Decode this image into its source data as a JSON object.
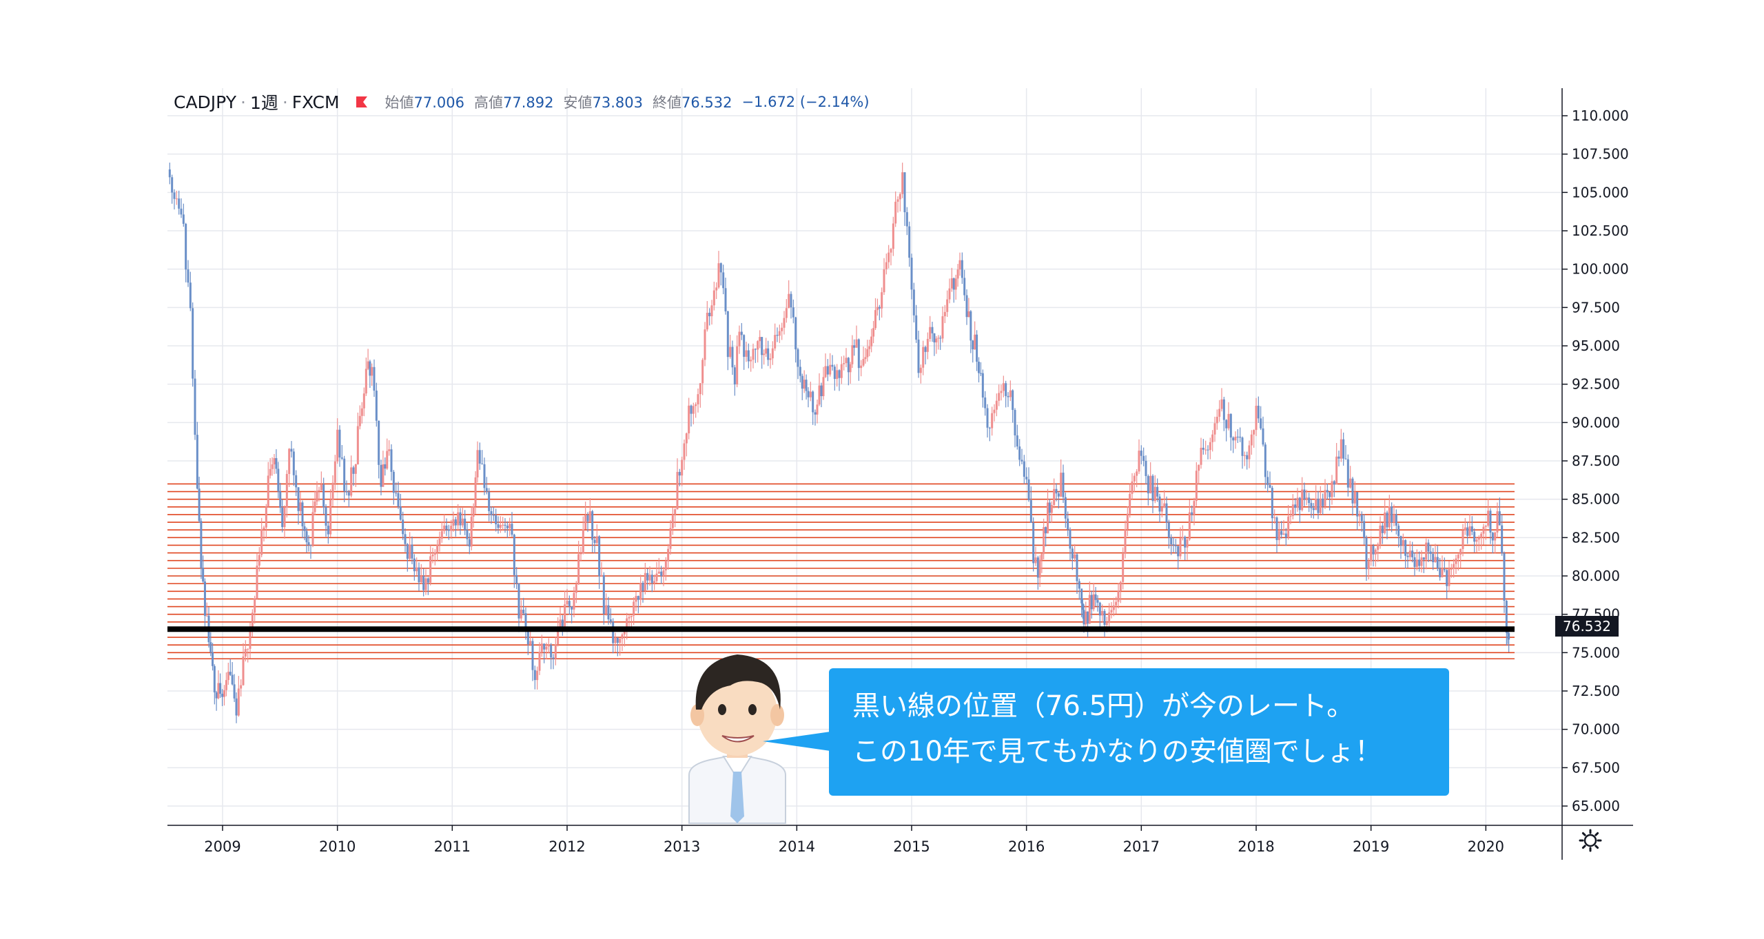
{
  "header": {
    "symbol": "CADJPY",
    "interval": "1週",
    "exchange": "FXCM",
    "open_label": "始値",
    "open_value": "77.006",
    "high_label": "高値",
    "high_value": "77.892",
    "low_label": "安値",
    "low_value": "73.803",
    "close_label": "終値",
    "close_value": "76.532",
    "change": "−1.672 (−2.14%)"
  },
  "price_tag": "76.532",
  "callout": {
    "line1": "黒い線の位置（76.5円）が今のレート。",
    "line2": "この10年で見てもかなりの安値圏でしょ！"
  },
  "colors": {
    "up": "#ef8e8e",
    "down": "#6a8fc8",
    "hline": "#e0441f",
    "current_line": "#000000",
    "callout_bg": "#1ea2f2"
  },
  "icons": {
    "flag": "red-flag-icon",
    "settings": "gear-icon",
    "avatar": "businessman-avatar"
  },
  "chart_data": {
    "type": "line",
    "title": "CADJPY 1週 FXCM",
    "xlabel": "",
    "ylabel": "",
    "x_ticks": [
      "2009",
      "2010",
      "2011",
      "2012",
      "2013",
      "2014",
      "2015",
      "2016",
      "2017",
      "2018",
      "2019",
      "2020"
    ],
    "y_ticks": [
      "110.000",
      "107.500",
      "105.000",
      "102.500",
      "100.000",
      "97.500",
      "95.000",
      "92.500",
      "90.000",
      "87.500",
      "85.000",
      "82.500",
      "80.000",
      "77.500",
      "75.000",
      "72.500",
      "70.000",
      "67.500",
      "65.000"
    ],
    "ylim": [
      62.5,
      112.5
    ],
    "xlim": [
      2008.52,
      2020.25
    ],
    "grid": true,
    "series": [
      {
        "values": [
          {
            "x": 2008.52,
            "y": 106.5
          },
          {
            "x": 2008.6,
            "y": 104.5
          },
          {
            "x": 2008.66,
            "y": 102.5
          },
          {
            "x": 2008.72,
            "y": 97
          },
          {
            "x": 2008.78,
            "y": 85
          },
          {
            "x": 2008.83,
            "y": 79
          },
          {
            "x": 2008.88,
            "y": 75.5
          },
          {
            "x": 2008.93,
            "y": 73
          },
          {
            "x": 2008.98,
            "y": 72
          },
          {
            "x": 2009.05,
            "y": 73.5
          },
          {
            "x": 2009.12,
            "y": 71
          },
          {
            "x": 2009.2,
            "y": 75
          },
          {
            "x": 2009.3,
            "y": 80
          },
          {
            "x": 2009.38,
            "y": 85
          },
          {
            "x": 2009.45,
            "y": 88
          },
          {
            "x": 2009.52,
            "y": 83
          },
          {
            "x": 2009.58,
            "y": 89
          },
          {
            "x": 2009.66,
            "y": 85
          },
          {
            "x": 2009.75,
            "y": 82
          },
          {
            "x": 2009.84,
            "y": 86
          },
          {
            "x": 2009.92,
            "y": 83
          },
          {
            "x": 2010.0,
            "y": 89
          },
          {
            "x": 2010.08,
            "y": 85
          },
          {
            "x": 2010.16,
            "y": 88
          },
          {
            "x": 2010.25,
            "y": 93
          },
          {
            "x": 2010.3,
            "y": 94
          },
          {
            "x": 2010.38,
            "y": 86
          },
          {
            "x": 2010.45,
            "y": 88
          },
          {
            "x": 2010.55,
            "y": 83
          },
          {
            "x": 2010.65,
            "y": 81
          },
          {
            "x": 2010.75,
            "y": 79
          },
          {
            "x": 2010.85,
            "y": 82
          },
          {
            "x": 2010.95,
            "y": 83
          },
          {
            "x": 2011.05,
            "y": 84
          },
          {
            "x": 2011.15,
            "y": 82
          },
          {
            "x": 2011.22,
            "y": 88
          },
          {
            "x": 2011.3,
            "y": 85
          },
          {
            "x": 2011.4,
            "y": 83
          },
          {
            "x": 2011.5,
            "y": 83.5
          },
          {
            "x": 2011.58,
            "y": 78
          },
          {
            "x": 2011.66,
            "y": 76
          },
          {
            "x": 2011.72,
            "y": 73.5
          },
          {
            "x": 2011.8,
            "y": 76
          },
          {
            "x": 2011.88,
            "y": 75
          },
          {
            "x": 2011.96,
            "y": 77
          },
          {
            "x": 2012.06,
            "y": 79
          },
          {
            "x": 2012.18,
            "y": 84
          },
          {
            "x": 2012.26,
            "y": 82
          },
          {
            "x": 2012.32,
            "y": 78
          },
          {
            "x": 2012.4,
            "y": 76
          },
          {
            "x": 2012.5,
            "y": 77
          },
          {
            "x": 2012.6,
            "y": 79
          },
          {
            "x": 2012.7,
            "y": 80
          },
          {
            "x": 2012.8,
            "y": 79.5
          },
          {
            "x": 2012.88,
            "y": 82
          },
          {
            "x": 2012.94,
            "y": 85
          },
          {
            "x": 2013.0,
            "y": 88
          },
          {
            "x": 2013.06,
            "y": 91
          },
          {
            "x": 2013.14,
            "y": 92
          },
          {
            "x": 2013.2,
            "y": 96
          },
          {
            "x": 2013.3,
            "y": 99
          },
          {
            "x": 2013.34,
            "y": 100.5
          },
          {
            "x": 2013.4,
            "y": 95
          },
          {
            "x": 2013.46,
            "y": 93
          },
          {
            "x": 2013.5,
            "y": 96
          },
          {
            "x": 2013.58,
            "y": 94
          },
          {
            "x": 2013.66,
            "y": 96
          },
          {
            "x": 2013.75,
            "y": 94
          },
          {
            "x": 2013.85,
            "y": 96
          },
          {
            "x": 2013.95,
            "y": 98
          },
          {
            "x": 2014.03,
            "y": 93
          },
          {
            "x": 2014.1,
            "y": 92
          },
          {
            "x": 2014.16,
            "y": 91
          },
          {
            "x": 2014.25,
            "y": 93
          },
          {
            "x": 2014.35,
            "y": 93.5
          },
          {
            "x": 2014.45,
            "y": 94
          },
          {
            "x": 2014.5,
            "y": 95
          },
          {
            "x": 2014.58,
            "y": 93.5
          },
          {
            "x": 2014.65,
            "y": 95.5
          },
          {
            "x": 2014.72,
            "y": 98
          },
          {
            "x": 2014.8,
            "y": 101
          },
          {
            "x": 2014.88,
            "y": 105
          },
          {
            "x": 2014.92,
            "y": 106
          },
          {
            "x": 2014.96,
            "y": 103
          },
          {
            "x": 2015.02,
            "y": 97
          },
          {
            "x": 2015.06,
            "y": 93
          },
          {
            "x": 2015.1,
            "y": 95
          },
          {
            "x": 2015.18,
            "y": 96
          },
          {
            "x": 2015.25,
            "y": 96
          },
          {
            "x": 2015.35,
            "y": 99
          },
          {
            "x": 2015.42,
            "y": 100.5
          },
          {
            "x": 2015.48,
            "y": 97
          },
          {
            "x": 2015.55,
            "y": 95
          },
          {
            "x": 2015.62,
            "y": 92
          },
          {
            "x": 2015.66,
            "y": 90
          },
          {
            "x": 2015.72,
            "y": 91
          },
          {
            "x": 2015.8,
            "y": 92.5
          },
          {
            "x": 2015.88,
            "y": 91.5
          },
          {
            "x": 2015.92,
            "y": 88
          },
          {
            "x": 2016.0,
            "y": 86
          },
          {
            "x": 2016.06,
            "y": 81
          },
          {
            "x": 2016.1,
            "y": 80.5
          },
          {
            "x": 2016.15,
            "y": 83
          },
          {
            "x": 2016.22,
            "y": 85
          },
          {
            "x": 2016.3,
            "y": 86
          },
          {
            "x": 2016.36,
            "y": 83
          },
          {
            "x": 2016.42,
            "y": 81
          },
          {
            "x": 2016.48,
            "y": 79
          },
          {
            "x": 2016.5,
            "y": 77
          },
          {
            "x": 2016.55,
            "y": 78
          },
          {
            "x": 2016.62,
            "y": 78.5
          },
          {
            "x": 2016.7,
            "y": 77
          },
          {
            "x": 2016.76,
            "y": 78
          },
          {
            "x": 2016.8,
            "y": 79
          },
          {
            "x": 2016.88,
            "y": 84
          },
          {
            "x": 2016.94,
            "y": 87
          },
          {
            "x": 2017.0,
            "y": 88
          },
          {
            "x": 2017.06,
            "y": 86
          },
          {
            "x": 2017.14,
            "y": 85
          },
          {
            "x": 2017.2,
            "y": 84
          },
          {
            "x": 2017.28,
            "y": 82
          },
          {
            "x": 2017.36,
            "y": 82
          },
          {
            "x": 2017.44,
            "y": 84
          },
          {
            "x": 2017.5,
            "y": 88
          },
          {
            "x": 2017.56,
            "y": 88
          },
          {
            "x": 2017.64,
            "y": 90
          },
          {
            "x": 2017.7,
            "y": 91
          },
          {
            "x": 2017.76,
            "y": 90
          },
          {
            "x": 2017.84,
            "y": 89
          },
          {
            "x": 2017.92,
            "y": 88
          },
          {
            "x": 2018.0,
            "y": 91
          },
          {
            "x": 2018.06,
            "y": 88
          },
          {
            "x": 2018.12,
            "y": 85
          },
          {
            "x": 2018.18,
            "y": 83
          },
          {
            "x": 2018.24,
            "y": 82
          },
          {
            "x": 2018.3,
            "y": 84
          },
          {
            "x": 2018.38,
            "y": 85
          },
          {
            "x": 2018.46,
            "y": 85
          },
          {
            "x": 2018.54,
            "y": 84
          },
          {
            "x": 2018.62,
            "y": 85.5
          },
          {
            "x": 2018.7,
            "y": 87
          },
          {
            "x": 2018.74,
            "y": 88.5
          },
          {
            "x": 2018.8,
            "y": 86
          },
          {
            "x": 2018.86,
            "y": 85
          },
          {
            "x": 2018.92,
            "y": 84
          },
          {
            "x": 2018.96,
            "y": 81
          },
          {
            "x": 2019.02,
            "y": 82
          },
          {
            "x": 2019.08,
            "y": 83
          },
          {
            "x": 2019.16,
            "y": 84
          },
          {
            "x": 2019.22,
            "y": 83.5
          },
          {
            "x": 2019.3,
            "y": 82
          },
          {
            "x": 2019.36,
            "y": 81
          },
          {
            "x": 2019.42,
            "y": 80.5
          },
          {
            "x": 2019.48,
            "y": 82.5
          },
          {
            "x": 2019.54,
            "y": 81
          },
          {
            "x": 2019.6,
            "y": 79.5
          },
          {
            "x": 2019.66,
            "y": 80
          },
          {
            "x": 2019.72,
            "y": 81
          },
          {
            "x": 2019.8,
            "y": 83
          },
          {
            "x": 2019.88,
            "y": 82.5
          },
          {
            "x": 2019.94,
            "y": 83
          },
          {
            "x": 2020.0,
            "y": 84
          },
          {
            "x": 2020.06,
            "y": 83
          },
          {
            "x": 2020.1,
            "y": 84
          },
          {
            "x": 2020.14,
            "y": 81
          },
          {
            "x": 2020.18,
            "y": 77
          },
          {
            "x": 2020.2,
            "y": 76.5
          }
        ]
      }
    ],
    "horizontal_lines": [
      86.0,
      85.5,
      85.0,
      84.5,
      84.0,
      83.5,
      83.0,
      82.5,
      82.0,
      81.5,
      81.0,
      80.5,
      80.0,
      79.5,
      79.0,
      78.5,
      78.0,
      77.5,
      77.0,
      76.0,
      75.5,
      75.0,
      74.6
    ],
    "current_price_line": 76.532
  }
}
